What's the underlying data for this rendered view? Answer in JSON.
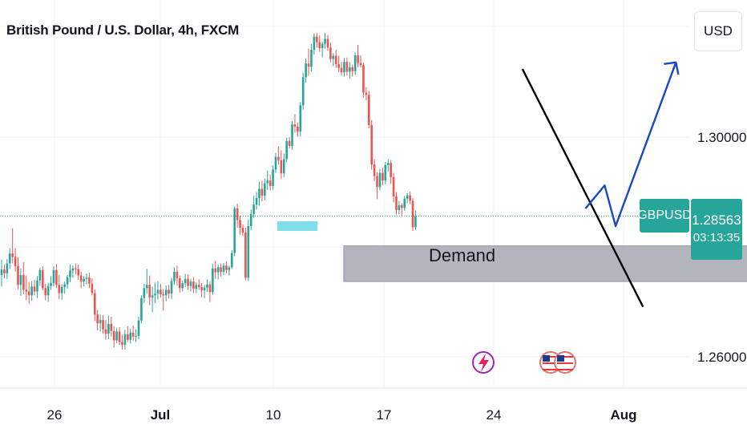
{
  "title": "British Pound / U.S. Dollar, 4h, FXCM",
  "currency_button": "USD",
  "symbol": "GBPUSD",
  "last_price": "1.28563",
  "countdown": "03:13:35",
  "colors": {
    "up": "#26a69a",
    "down": "#ef5350",
    "demand_zone": "#b2b5be",
    "marker": "#80deea",
    "trendline": "#000000",
    "arrow": "#1848c8"
  },
  "annotations": {
    "demand_label": "Demand"
  },
  "icons": [
    "lightning-event-icon",
    "us-flag-event-icon"
  ],
  "chart_data": {
    "type": "candlestick",
    "title": "British Pound / U.S. Dollar, 4h, FXCM",
    "y_tick_labels": [
      "1.30000",
      "1.26000"
    ],
    "y_ticks": [
      1.3,
      1.26
    ],
    "x_tick_labels": [
      "26",
      "Jul",
      "10",
      "17",
      "24",
      "Aug"
    ],
    "ylim": [
      1.2551,
      1.3251
    ],
    "last_price": 1.28563,
    "grid": true,
    "demand_zone": {
      "label": "Demand",
      "top": 1.2802,
      "bottom": 1.2737,
      "from_bar": 126,
      "to_bar": 280
    },
    "trendline": {
      "from": [
        190,
        1.3124
      ],
      "to": [
        234,
        1.2691
      ]
    },
    "projection_path": [
      [
        213,
        1.287
      ],
      [
        220,
        1.2912
      ],
      [
        224,
        1.2838
      ],
      [
        246,
        1.3136
      ]
    ],
    "candles": [
      [
        1.2749,
        1.2777,
        1.2728,
        1.2759
      ],
      [
        1.2759,
        1.2768,
        1.2743,
        1.2752
      ],
      [
        1.2752,
        1.2778,
        1.2742,
        1.277
      ],
      [
        1.277,
        1.2798,
        1.276,
        1.2788
      ],
      [
        1.2788,
        1.2834,
        1.277,
        1.2782
      ],
      [
        1.2782,
        1.2798,
        1.2755,
        1.2765
      ],
      [
        1.2765,
        1.2781,
        1.2723,
        1.2731
      ],
      [
        1.2731,
        1.2761,
        1.2711,
        1.2749
      ],
      [
        1.2749,
        1.2772,
        1.2714,
        1.2722
      ],
      [
        1.2722,
        1.2748,
        1.2703,
        1.2719
      ],
      [
        1.2719,
        1.2736,
        1.2697,
        1.2712
      ],
      [
        1.2712,
        1.2738,
        1.2702,
        1.2728
      ],
      [
        1.2728,
        1.274,
        1.2712,
        1.2719
      ],
      [
        1.2719,
        1.2747,
        1.2707,
        1.2739
      ],
      [
        1.2739,
        1.2762,
        1.2729,
        1.2758
      ],
      [
        1.2758,
        1.2765,
        1.2721,
        1.2725
      ],
      [
        1.2725,
        1.2733,
        1.2703,
        1.2712
      ],
      [
        1.2712,
        1.2735,
        1.27,
        1.2729
      ],
      [
        1.2729,
        1.2747,
        1.2722,
        1.2734
      ],
      [
        1.2734,
        1.2765,
        1.2728,
        1.2758
      ],
      [
        1.2758,
        1.2769,
        1.2725,
        1.2731
      ],
      [
        1.2731,
        1.2749,
        1.2705,
        1.2716
      ],
      [
        1.2716,
        1.2732,
        1.2704,
        1.2727
      ],
      [
        1.2727,
        1.2737,
        1.2715,
        1.2732
      ],
      [
        1.2732,
        1.2749,
        1.2724,
        1.2745
      ],
      [
        1.2745,
        1.2768,
        1.2736,
        1.2757
      ],
      [
        1.2757,
        1.2766,
        1.2744,
        1.2761
      ],
      [
        1.2761,
        1.277,
        1.275,
        1.276
      ],
      [
        1.276,
        1.2768,
        1.274,
        1.2748
      ],
      [
        1.2748,
        1.2755,
        1.2725,
        1.2737
      ],
      [
        1.2737,
        1.2747,
        1.2728,
        1.2742
      ],
      [
        1.2742,
        1.2752,
        1.2732,
        1.2744
      ],
      [
        1.2744,
        1.2753,
        1.2725,
        1.2733
      ],
      [
        1.2733,
        1.2743,
        1.2712,
        1.2716
      ],
      [
        1.2716,
        1.2723,
        1.2665,
        1.2677
      ],
      [
        1.2677,
        1.2685,
        1.2648,
        1.2661
      ],
      [
        1.2661,
        1.2677,
        1.2646,
        1.2667
      ],
      [
        1.2667,
        1.2676,
        1.2642,
        1.265
      ],
      [
        1.265,
        1.2667,
        1.2631,
        1.2642
      ],
      [
        1.2642,
        1.2675,
        1.2632,
        1.266
      ],
      [
        1.266,
        1.2673,
        1.2637,
        1.2647
      ],
      [
        1.2647,
        1.2655,
        1.2617,
        1.263
      ],
      [
        1.263,
        1.2653,
        1.2625,
        1.2646
      ],
      [
        1.2646,
        1.2654,
        1.2622,
        1.2627
      ],
      [
        1.2627,
        1.264,
        1.2613,
        1.2622
      ],
      [
        1.2622,
        1.2649,
        1.2613,
        1.2641
      ],
      [
        1.2641,
        1.2656,
        1.2627,
        1.2631
      ],
      [
        1.2631,
        1.2651,
        1.2624,
        1.2644
      ],
      [
        1.2644,
        1.2657,
        1.2629,
        1.2637
      ],
      [
        1.2637,
        1.265,
        1.2627,
        1.2638
      ],
      [
        1.2638,
        1.2673,
        1.2632,
        1.2666
      ],
      [
        1.2666,
        1.2712,
        1.2661,
        1.2707
      ],
      [
        1.2707,
        1.2733,
        1.2698,
        1.2725
      ],
      [
        1.2725,
        1.276,
        1.2715,
        1.2731
      ],
      [
        1.2731,
        1.2748,
        1.2694,
        1.2708
      ],
      [
        1.2708,
        1.2728,
        1.2681,
        1.2712
      ],
      [
        1.2712,
        1.2735,
        1.2698,
        1.2715
      ],
      [
        1.2715,
        1.2738,
        1.2704,
        1.2722
      ],
      [
        1.2722,
        1.2733,
        1.2708,
        1.2714
      ],
      [
        1.2714,
        1.2723,
        1.2684,
        1.2712
      ],
      [
        1.2712,
        1.273,
        1.2701,
        1.2722
      ],
      [
        1.2722,
        1.2731,
        1.2706,
        1.2715
      ],
      [
        1.2715,
        1.2744,
        1.2705,
        1.2738
      ],
      [
        1.2738,
        1.2763,
        1.2731,
        1.2755
      ],
      [
        1.2755,
        1.2766,
        1.273,
        1.2743
      ],
      [
        1.2743,
        1.2748,
        1.2717,
        1.2725
      ],
      [
        1.2725,
        1.2739,
        1.2719,
        1.2734
      ],
      [
        1.2734,
        1.2751,
        1.2727,
        1.2742
      ],
      [
        1.2742,
        1.2749,
        1.2722,
        1.2729
      ],
      [
        1.2729,
        1.2742,
        1.2719,
        1.2737
      ],
      [
        1.2737,
        1.2745,
        1.2716,
        1.2724
      ],
      [
        1.2724,
        1.2736,
        1.2716,
        1.2731
      ],
      [
        1.2731,
        1.2741,
        1.2722,
        1.2727
      ],
      [
        1.2727,
        1.2734,
        1.2708,
        1.2721
      ],
      [
        1.2721,
        1.2731,
        1.2707,
        1.2726
      ],
      [
        1.2726,
        1.2741,
        1.2718,
        1.2732
      ],
      [
        1.2732,
        1.2737,
        1.27,
        1.2718
      ],
      [
        1.2718,
        1.277,
        1.2713,
        1.2761
      ],
      [
        1.2761,
        1.2775,
        1.2742,
        1.2754
      ],
      [
        1.2754,
        1.2768,
        1.2741,
        1.2763
      ],
      [
        1.2763,
        1.277,
        1.2746,
        1.2755
      ],
      [
        1.2755,
        1.2771,
        1.2749,
        1.2766
      ],
      [
        1.2766,
        1.2774,
        1.2752,
        1.2758
      ],
      [
        1.2758,
        1.2766,
        1.2748,
        1.2763
      ],
      [
        1.2763,
        1.2794,
        1.276,
        1.2789
      ],
      [
        1.2789,
        1.2874,
        1.2783,
        1.287
      ],
      [
        1.287,
        1.2879,
        1.2835,
        1.2849
      ],
      [
        1.2849,
        1.2857,
        1.2822,
        1.2835
      ],
      [
        1.2835,
        1.2841,
        1.282,
        1.2826
      ],
      [
        1.2826,
        1.2835,
        1.2739,
        1.2744
      ],
      [
        1.2744,
        1.285,
        1.2738,
        1.2838
      ],
      [
        1.2838,
        1.2868,
        1.2831,
        1.286
      ],
      [
        1.286,
        1.2893,
        1.2853,
        1.2877
      ],
      [
        1.2877,
        1.29,
        1.2868,
        1.2889
      ],
      [
        1.2889,
        1.2919,
        1.2875,
        1.2906
      ],
      [
        1.2906,
        1.292,
        1.2883,
        1.2893
      ],
      [
        1.2893,
        1.2924,
        1.2885,
        1.2916
      ],
      [
        1.2916,
        1.2939,
        1.2904,
        1.2921
      ],
      [
        1.2921,
        1.2932,
        1.2903,
        1.2911
      ],
      [
        1.2911,
        1.2948,
        1.2904,
        1.2941
      ],
      [
        1.2941,
        1.2971,
        1.2935,
        1.2964
      ],
      [
        1.2964,
        1.2983,
        1.295,
        1.2958
      ],
      [
        1.2958,
        1.2976,
        1.2924,
        1.2934
      ],
      [
        1.2934,
        1.297,
        1.2927,
        1.296
      ],
      [
        1.296,
        1.2999,
        1.2954,
        1.2993
      ],
      [
        1.2993,
        1.3,
        1.2979,
        1.2984
      ],
      [
        1.2984,
        1.3029,
        1.2977,
        1.3023
      ],
      [
        1.3023,
        1.3042,
        1.3008,
        1.3019
      ],
      [
        1.3019,
        1.3026,
        1.3001,
        1.301
      ],
      [
        1.301,
        1.3064,
        1.3001,
        1.3058
      ],
      [
        1.3058,
        1.3117,
        1.305,
        1.3109
      ],
      [
        1.3109,
        1.3143,
        1.3099,
        1.3134
      ],
      [
        1.3134,
        1.3161,
        1.3112,
        1.3128
      ],
      [
        1.3128,
        1.3169,
        1.3119,
        1.3159
      ],
      [
        1.3159,
        1.3189,
        1.315,
        1.3183
      ],
      [
        1.3183,
        1.319,
        1.3163,
        1.3173
      ],
      [
        1.3173,
        1.3185,
        1.3155,
        1.3162
      ],
      [
        1.3162,
        1.3174,
        1.3145,
        1.317
      ],
      [
        1.317,
        1.319,
        1.3161,
        1.3179
      ],
      [
        1.3179,
        1.3186,
        1.3157,
        1.3163
      ],
      [
        1.3163,
        1.3172,
        1.3136,
        1.3142
      ],
      [
        1.3142,
        1.3153,
        1.3129,
        1.3148
      ],
      [
        1.3148,
        1.3159,
        1.3126,
        1.3133
      ],
      [
        1.3133,
        1.3148,
        1.3119,
        1.3126
      ],
      [
        1.3126,
        1.3137,
        1.3112,
        1.3118
      ],
      [
        1.3118,
        1.3144,
        1.311,
        1.3137
      ],
      [
        1.3137,
        1.3145,
        1.3112,
        1.3119
      ],
      [
        1.3119,
        1.3137,
        1.3106,
        1.3127
      ],
      [
        1.3127,
        1.3132,
        1.311,
        1.312
      ],
      [
        1.312,
        1.3154,
        1.3113,
        1.3149
      ],
      [
        1.3149,
        1.3168,
        1.3127,
        1.3135
      ],
      [
        1.3135,
        1.3149,
        1.3127,
        1.3131
      ],
      [
        1.3131,
        1.3136,
        1.3072,
        1.3081
      ],
      [
        1.3081,
        1.3091,
        1.3067,
        1.3077
      ],
      [
        1.3077,
        1.3084,
        1.3016,
        1.3022
      ],
      [
        1.3022,
        1.3031,
        1.2941,
        1.295
      ],
      [
        1.295,
        1.296,
        1.292,
        1.2929
      ],
      [
        1.2929,
        1.2936,
        1.2887,
        1.2909
      ],
      [
        1.2909,
        1.2942,
        1.2903,
        1.2935
      ],
      [
        1.2935,
        1.2944,
        1.2912,
        1.2921
      ],
      [
        1.2921,
        1.2955,
        1.2914,
        1.2949
      ],
      [
        1.2949,
        1.296,
        1.2937,
        1.2953
      ],
      [
        1.2953,
        1.2958,
        1.2915,
        1.2927
      ],
      [
        1.2927,
        1.2935,
        1.2881,
        1.2892
      ],
      [
        1.2892,
        1.29,
        1.2859,
        1.2867
      ],
      [
        1.2867,
        1.2884,
        1.2859,
        1.2876
      ],
      [
        1.2876,
        1.288,
        1.2856,
        1.2871
      ],
      [
        1.2871,
        1.2893,
        1.2866,
        1.2888
      ],
      [
        1.2888,
        1.2898,
        1.2879,
        1.2894
      ],
      [
        1.2894,
        1.2901,
        1.2878,
        1.2884
      ],
      [
        1.2884,
        1.2889,
        1.2829,
        1.2836
      ],
      [
        1.2836,
        1.2866,
        1.2831,
        1.2856
      ]
    ]
  }
}
